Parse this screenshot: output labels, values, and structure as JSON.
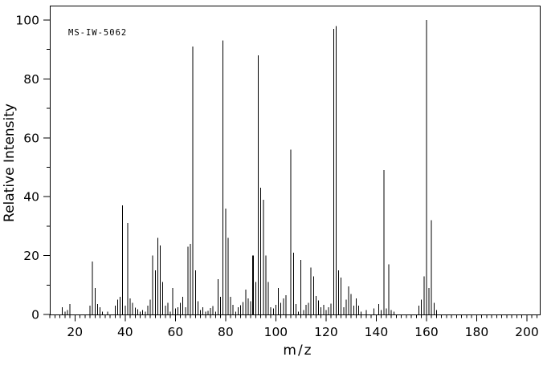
{
  "annotation": "MS-IW-5062",
  "chart_data": {
    "type": "bar",
    "title": "",
    "xlabel": "m/z",
    "ylabel": "Relative Intensity",
    "xlim": [
      10,
      205
    ],
    "ylim": [
      0,
      105
    ],
    "grid": false,
    "legend": "none",
    "x_major_ticks": [
      20,
      40,
      60,
      80,
      100,
      120,
      140,
      160,
      180,
      200
    ],
    "x_minor_step": 2,
    "y_major_ticks": [
      0,
      20,
      40,
      60,
      80,
      100
    ],
    "y_minor_step": 10,
    "colors": {
      "line": "#000000",
      "background": "#ffffff",
      "text": "#000000"
    },
    "thick_peaks": [
      91
    ],
    "peaks": [
      [
        15,
        2.5
      ],
      [
        16,
        1
      ],
      [
        17,
        1.5
      ],
      [
        18,
        3.5
      ],
      [
        26,
        3
      ],
      [
        27,
        18
      ],
      [
        28,
        9
      ],
      [
        29,
        3.5
      ],
      [
        30,
        2.5
      ],
      [
        31,
        1
      ],
      [
        33,
        1
      ],
      [
        36,
        3
      ],
      [
        37,
        5
      ],
      [
        38,
        6
      ],
      [
        39,
        37
      ],
      [
        40,
        3
      ],
      [
        41,
        31
      ],
      [
        42,
        5.5
      ],
      [
        43,
        4
      ],
      [
        44,
        2.3
      ],
      [
        45,
        1.8
      ],
      [
        46,
        1
      ],
      [
        47,
        1.5
      ],
      [
        48,
        1
      ],
      [
        49,
        3
      ],
      [
        50,
        5
      ],
      [
        51,
        20
      ],
      [
        52,
        15
      ],
      [
        53,
        26
      ],
      [
        54,
        23.5
      ],
      [
        55,
        11
      ],
      [
        56,
        3
      ],
      [
        57,
        4
      ],
      [
        58,
        1
      ],
      [
        59,
        9
      ],
      [
        60,
        2
      ],
      [
        61,
        2.5
      ],
      [
        62,
        4
      ],
      [
        63,
        6
      ],
      [
        64,
        2.5
      ],
      [
        65,
        23
      ],
      [
        66,
        24
      ],
      [
        67,
        91
      ],
      [
        68,
        15
      ],
      [
        69,
        4.5
      ],
      [
        70,
        1.5
      ],
      [
        71,
        2.5
      ],
      [
        72,
        1
      ],
      [
        73,
        1.2
      ],
      [
        74,
        2.2
      ],
      [
        75,
        2.8
      ],
      [
        76,
        1
      ],
      [
        77,
        12
      ],
      [
        78,
        6
      ],
      [
        79,
        93
      ],
      [
        80,
        36
      ],
      [
        81,
        26
      ],
      [
        82,
        6
      ],
      [
        83,
        3.3
      ],
      [
        84,
        1
      ],
      [
        85,
        2.4
      ],
      [
        86,
        3.1
      ],
      [
        87,
        4.2
      ],
      [
        88,
        8.5
      ],
      [
        89,
        5.5
      ],
      [
        90,
        4.5
      ],
      [
        91,
        20
      ],
      [
        92,
        11
      ],
      [
        93,
        88
      ],
      [
        94,
        43
      ],
      [
        95,
        39
      ],
      [
        96,
        20
      ],
      [
        97,
        11
      ],
      [
        98,
        2.5
      ],
      [
        99,
        2
      ],
      [
        100,
        3.3
      ],
      [
        101,
        9
      ],
      [
        102,
        4
      ],
      [
        103,
        5.5
      ],
      [
        104,
        6.5
      ],
      [
        106,
        56
      ],
      [
        107,
        21
      ],
      [
        108,
        3.5
      ],
      [
        109,
        1
      ],
      [
        110,
        18.5
      ],
      [
        111,
        1.5
      ],
      [
        112,
        3.3
      ],
      [
        113,
        4
      ],
      [
        114,
        16
      ],
      [
        115,
        13
      ],
      [
        116,
        6.3
      ],
      [
        117,
        4.8
      ],
      [
        118,
        2.5
      ],
      [
        119,
        3.3
      ],
      [
        120,
        1.5
      ],
      [
        121,
        2.5
      ],
      [
        122,
        3.7
      ],
      [
        123,
        97
      ],
      [
        124,
        98
      ],
      [
        125,
        15
      ],
      [
        126,
        12.5
      ],
      [
        127,
        2.5
      ],
      [
        128,
        5
      ],
      [
        129,
        9.5
      ],
      [
        130,
        7
      ],
      [
        131,
        3
      ],
      [
        132,
        5.5
      ],
      [
        133,
        3
      ],
      [
        134,
        1
      ],
      [
        136,
        1.5
      ],
      [
        139,
        2
      ],
      [
        141,
        3.5
      ],
      [
        142,
        1.5
      ],
      [
        143,
        49
      ],
      [
        144,
        2
      ],
      [
        145,
        17
      ],
      [
        146,
        1.5
      ],
      [
        147,
        1
      ],
      [
        157,
        3
      ],
      [
        158,
        5
      ],
      [
        159,
        13
      ],
      [
        160,
        100
      ],
      [
        161,
        9
      ],
      [
        162,
        32
      ],
      [
        163,
        4
      ],
      [
        164,
        1.5
      ]
    ]
  }
}
